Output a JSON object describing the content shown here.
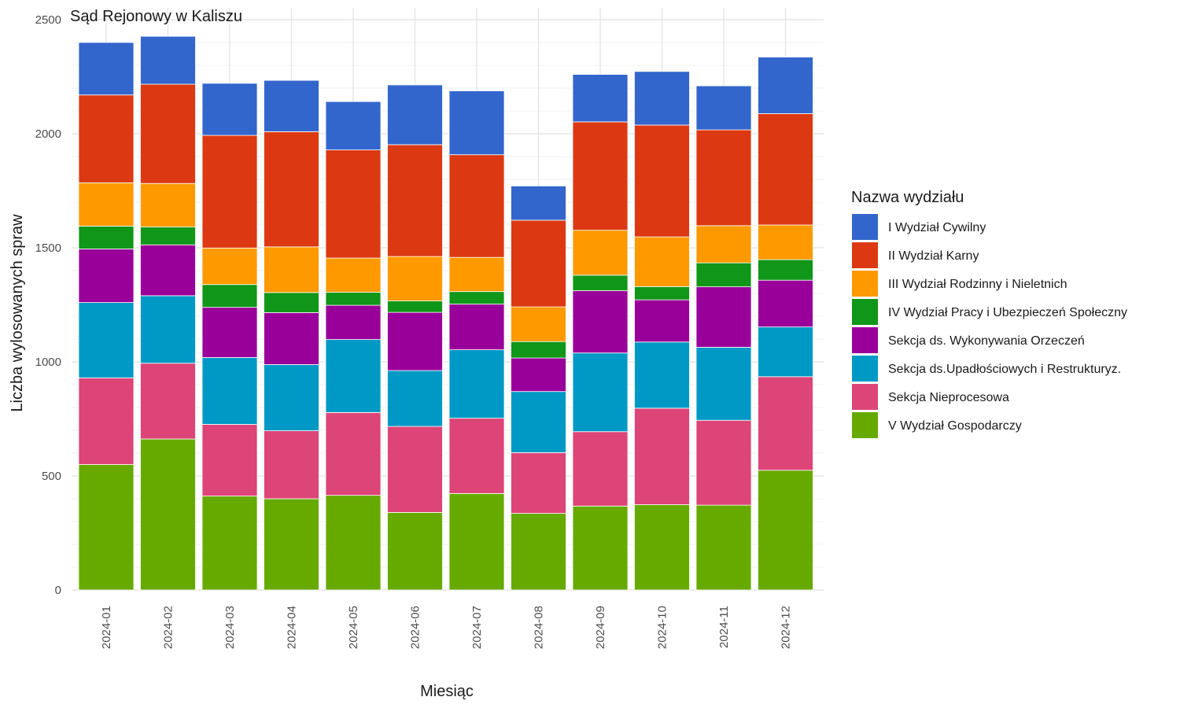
{
  "chart_data": {
    "type": "bar",
    "stacked": true,
    "title": "Sąd Rejonowy w Kaliszu",
    "xlabel": "Miesiąc",
    "ylabel": "Liczba wylosowanych spraw",
    "ylim": [
      0,
      2500
    ],
    "yticks": [
      0,
      500,
      1000,
      1500,
      2000,
      2500
    ],
    "grid": true,
    "legend_position": "right",
    "legend_title": "Nazwa wydziału",
    "categories": [
      "2024-01",
      "2024-02",
      "2024-03",
      "2024-04",
      "2024-05",
      "2024-06",
      "2024-07",
      "2024-08",
      "2024-09",
      "2024-10",
      "2024-11",
      "2024-12"
    ],
    "series": [
      {
        "name": "V Wydział Gospodarczy",
        "color": "#66aa00",
        "values": [
          550,
          662,
          412,
          400,
          415,
          340,
          423,
          336,
          368,
          374,
          372,
          525
        ]
      },
      {
        "name": "Sekcja Nieprocesowa",
        "color": "#dd4477",
        "values": [
          380,
          332,
          314,
          298,
          363,
          377,
          330,
          266,
          326,
          423,
          372,
          410
        ]
      },
      {
        "name": "Sekcja ds.Upadłościowych i Restrukturyz.",
        "color": "#0099c6",
        "values": [
          330,
          296,
          293,
          290,
          320,
          245,
          300,
          268,
          345,
          290,
          320,
          218
        ]
      },
      {
        "name": "Sekcja ds. Wykonywania Orzeczeń",
        "color": "#990099",
        "values": [
          235,
          223,
          220,
          228,
          150,
          255,
          200,
          147,
          273,
          185,
          265,
          205
        ]
      },
      {
        "name": "IV Wydział Pracy i Ubezpieczeń Społeczny",
        "color": "#109618",
        "values": [
          100,
          78,
          100,
          88,
          57,
          50,
          55,
          72,
          68,
          58,
          105,
          90
        ]
      },
      {
        "name": "III Wydział Rodzinny i Nieletnich",
        "color": "#ff9900",
        "values": [
          190,
          191,
          160,
          200,
          150,
          195,
          150,
          152,
          197,
          218,
          163,
          152
        ]
      },
      {
        "name": "II Wydział Karny",
        "color": "#dc3912",
        "values": [
          385,
          435,
          494,
          505,
          474,
          490,
          450,
          380,
          475,
          490,
          420,
          488
        ]
      },
      {
        "name": "I Wydział Cywilny",
        "color": "#3366cc",
        "values": [
          230,
          210,
          228,
          225,
          212,
          262,
          280,
          150,
          208,
          235,
          193,
          248
        ]
      }
    ],
    "legend_order": [
      "I Wydział Cywilny",
      "II Wydział Karny",
      "III Wydział Rodzinny i Nieletnich",
      "IV Wydział Pracy i Ubezpieczeń Społeczny",
      "Sekcja ds. Wykonywania Orzeczeń",
      "Sekcja ds.Upadłościowych i Restrukturyz.",
      "Sekcja Nieprocesowa",
      "V Wydział Gospodarczy"
    ]
  }
}
